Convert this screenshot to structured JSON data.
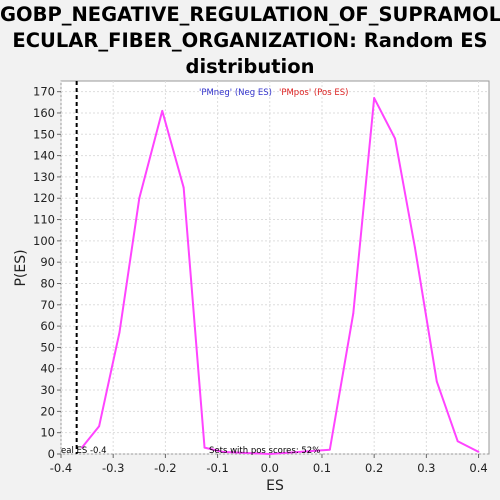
{
  "chart_data": {
    "type": "line",
    "title": "GOBP_NEGATIVE_REGULATION_OF_SUPRAMOLECULAR_FIBER_ORGANIZATION: Random ES distribution",
    "xlabel": "ES",
    "ylabel": "P(ES)",
    "xlim": [
      -0.4,
      0.42
    ],
    "ylim": [
      0,
      175
    ],
    "xticks": [
      -0.4,
      -0.3,
      -0.2,
      -0.1,
      0.0,
      0.1,
      0.2,
      0.3,
      0.4
    ],
    "xtick_labels": [
      "-0.4",
      "-0.3",
      "-0.2",
      "-0.1",
      "0.0",
      "0.1",
      "0.2",
      "0.3",
      "0.4"
    ],
    "yticks": [
      0,
      10,
      20,
      30,
      40,
      50,
      60,
      70,
      80,
      90,
      100,
      110,
      120,
      130,
      140,
      150,
      160,
      170
    ],
    "grid": true,
    "series": [
      {
        "color": "#ff44ff",
        "x": [
          -0.36,
          -0.327,
          -0.288,
          -0.25,
          -0.206,
          -0.165,
          -0.125,
          -0.09,
          0.0,
          0.115,
          0.16,
          0.2,
          0.24,
          0.278,
          0.32,
          0.36,
          0.4
        ],
        "y": [
          3,
          13,
          57,
          120,
          161,
          125,
          3,
          1,
          0,
          2,
          66,
          167,
          148,
          97,
          34,
          6,
          1
        ]
      }
    ],
    "vline": {
      "x": -0.37,
      "style": "dashed",
      "color": "#000000"
    },
    "annotations": {
      "neg_label": "'PMneg' (Neg ES)",
      "neg_color": "#3333cc",
      "pos_label": "'PMpos' (Pos ES)",
      "pos_color": "#dd2222",
      "real_es_label": "eal ES -0.4",
      "pos_scores_label": "Sets with pos scores: 52%"
    }
  }
}
